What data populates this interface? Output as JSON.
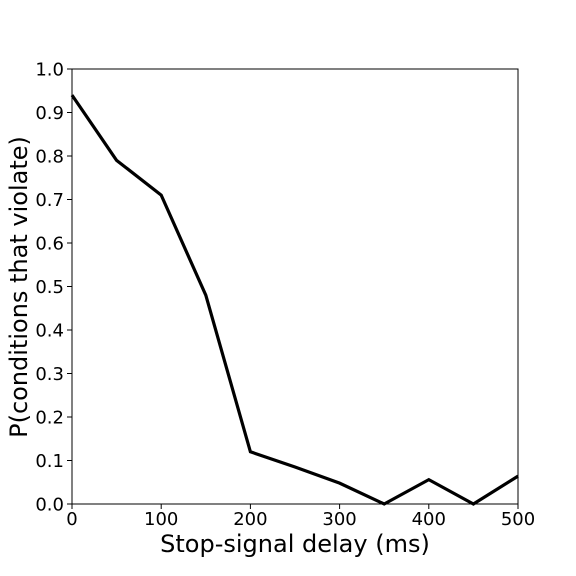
{
  "chart_data": {
    "type": "line",
    "title": "",
    "xlabel": "Stop-signal delay (ms)",
    "ylabel": "P(conditions that violate)",
    "xlim": [
      0,
      500
    ],
    "ylim": [
      0,
      1.0
    ],
    "xticks": [
      "0",
      "100",
      "200",
      "300",
      "400",
      "500"
    ],
    "yticks": [
      "0.0",
      "0.1",
      "0.2",
      "0.3",
      "0.4",
      "0.5",
      "0.6",
      "0.7",
      "0.8",
      "0.9",
      "1.0"
    ],
    "grid": false,
    "legend": "none",
    "series": [
      {
        "color": "#000000",
        "x": [
          0,
          50,
          100,
          150,
          200,
          250,
          300,
          350,
          400,
          450,
          500
        ],
        "y": [
          0.94,
          0.79,
          0.71,
          0.48,
          0.12,
          0.085,
          0.048,
          0.0,
          0.056,
          0.0,
          0.064
        ]
      }
    ]
  }
}
